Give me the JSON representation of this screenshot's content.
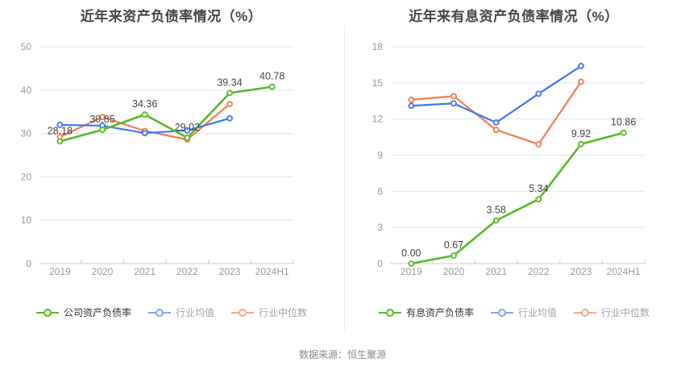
{
  "source_note": "数据来源：恒生聚源",
  "palette": {
    "grid_line": "#dce6f2",
    "axis_line": "#c9cdd4",
    "tick_text": "#999999",
    "value_label_text": "#444444",
    "title_text": "#454545"
  },
  "chart_data": [
    {
      "type": "line",
      "title": "近年来资产负债率情况（%）",
      "categories": [
        "2019",
        "2020",
        "2021",
        "2022",
        "2023",
        "2024H1"
      ],
      "ylim": [
        0,
        50
      ],
      "y_ticks": [
        0,
        10,
        20,
        30,
        40,
        50
      ],
      "grid": true,
      "legend_position": "bottom",
      "series": [
        {
          "name": "公司资产负债率",
          "color": "#53bc21",
          "legend_color": "#53bc21",
          "legend_text_color": "#333333",
          "values": [
            28.18,
            30.85,
            34.36,
            29.02,
            39.34,
            40.78
          ],
          "point_labels": [
            "28.18",
            "30.85",
            "34.36",
            "29.02",
            "39.34",
            "40.78"
          ]
        },
        {
          "name": "行业均值",
          "color": "#3d78f0",
          "legend_color": "#85a4f6",
          "legend_text_color": "#9fa4aa",
          "values": [
            32.0,
            31.8,
            30.1,
            30.7,
            33.5,
            null
          ],
          "point_labels": null
        },
        {
          "name": "行业中位数",
          "color": "#f57b51",
          "legend_color": "#f9a886",
          "legend_text_color": "#9fa4aa",
          "values": [
            29.2,
            33.8,
            30.6,
            28.6,
            36.8,
            null
          ],
          "point_labels": null
        }
      ]
    },
    {
      "type": "line",
      "title": "近年来有息资产负债率情况（%）",
      "categories": [
        "2019",
        "2020",
        "2021",
        "2022",
        "2023",
        "2024H1"
      ],
      "ylim": [
        0,
        18
      ],
      "y_ticks": [
        0,
        3,
        6,
        9,
        12,
        15,
        18
      ],
      "grid": true,
      "legend_position": "bottom",
      "series": [
        {
          "name": "有息资产负债率",
          "color": "#53bc21",
          "legend_color": "#53bc21",
          "legend_text_color": "#333333",
          "values": [
            0.0,
            0.67,
            3.58,
            5.34,
            9.92,
            10.86
          ],
          "point_labels": [
            "0.00",
            "0.67",
            "3.58",
            "5.34",
            "9.92",
            "10.86"
          ]
        },
        {
          "name": "行业均值",
          "color": "#3d78f0",
          "legend_color": "#85a4f6",
          "legend_text_color": "#9fa4aa",
          "values": [
            13.1,
            13.3,
            11.7,
            14.1,
            16.4,
            null
          ],
          "point_labels": null
        },
        {
          "name": "行业中位数",
          "color": "#f57b51",
          "legend_color": "#f9a886",
          "legend_text_color": "#9fa4aa",
          "values": [
            13.6,
            13.9,
            11.1,
            9.9,
            15.1,
            null
          ],
          "point_labels": null
        }
      ]
    }
  ]
}
